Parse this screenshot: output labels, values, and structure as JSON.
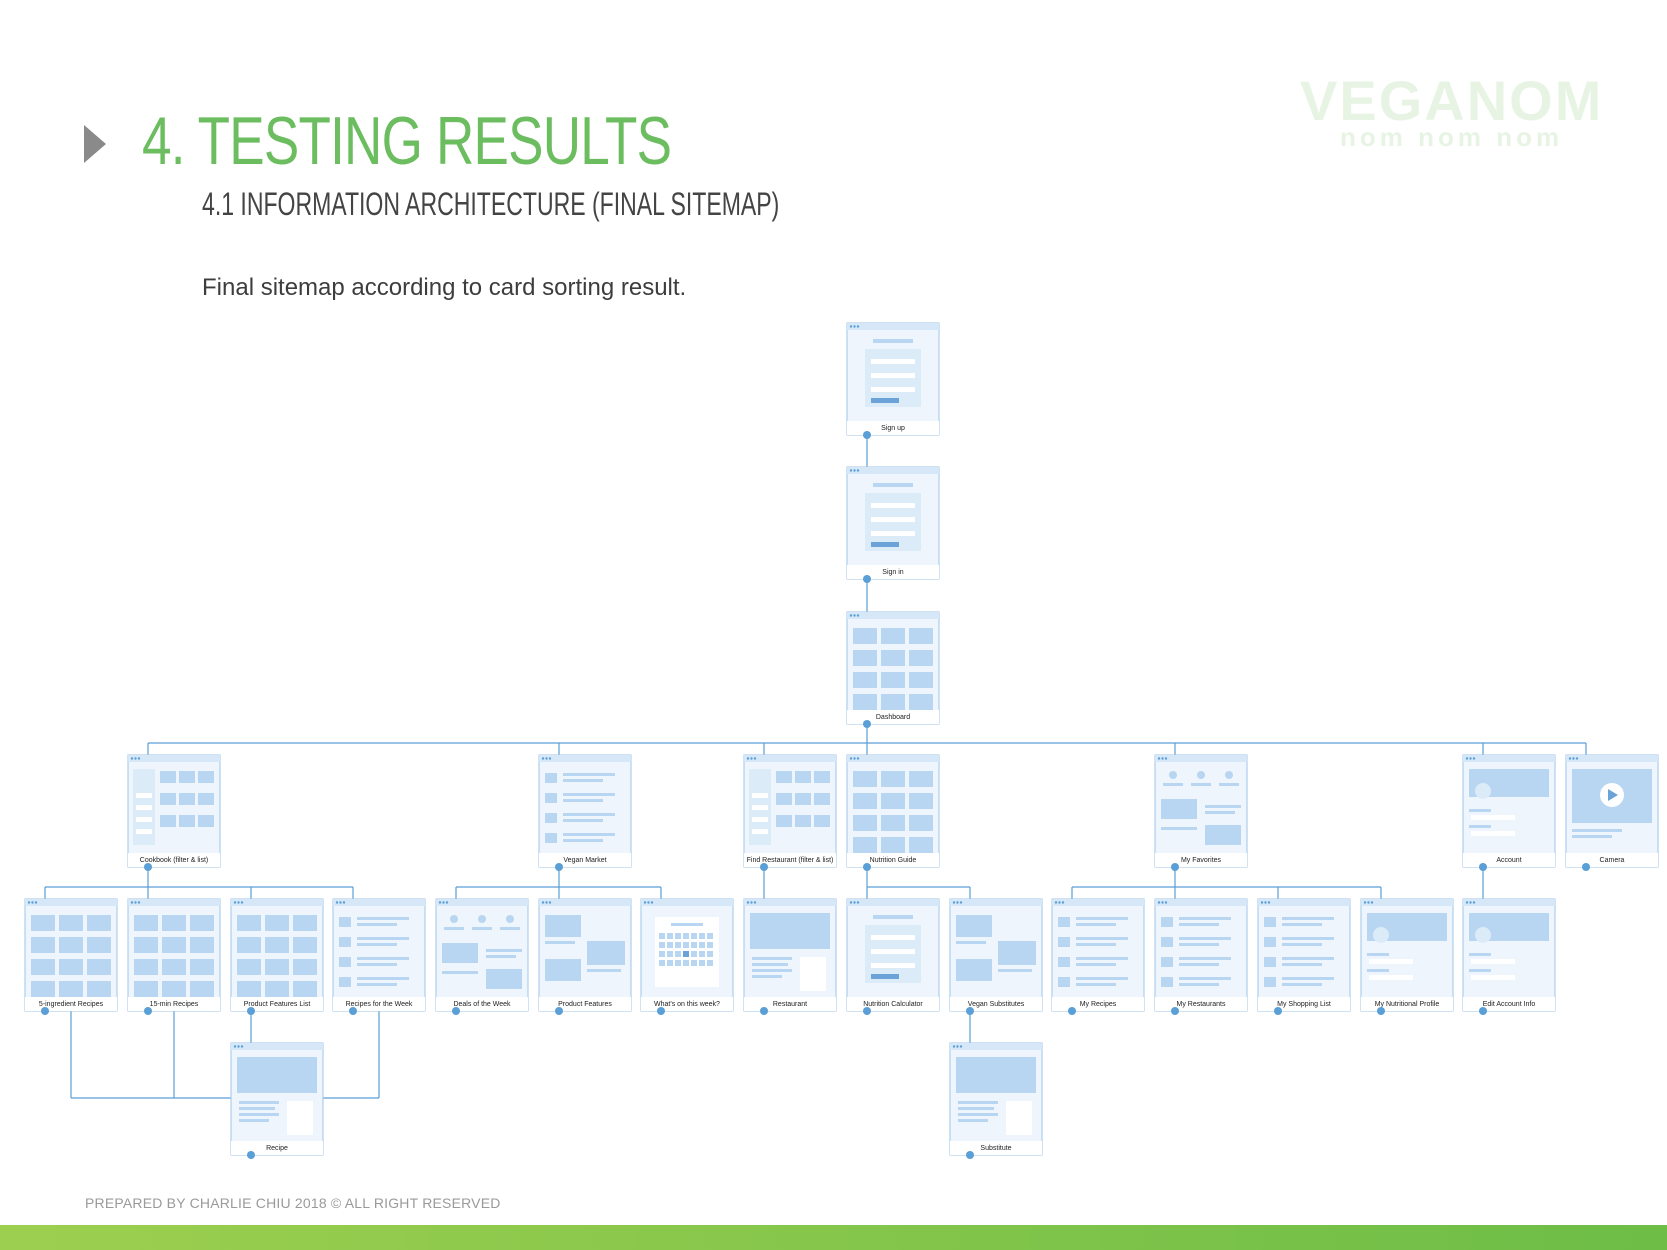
{
  "header": {
    "title": "4. TESTING RESULTS",
    "subtitle": "4.1  INFORMATION ARCHITECTURE (FINAL SITEMAP)",
    "intro": "Final sitemap according to card sorting result."
  },
  "logo": {
    "word": "VEGANOM",
    "tagline": "nom nom nom"
  },
  "footer": {
    "text": "PREPARED BY CHARLIE CHIU 2018  © ALL RIGHT RESERVED"
  },
  "colors": {
    "title": "#6cbd5f",
    "line": "#5a9fd6",
    "card_fill": "#eef5fc",
    "card_stroke": "#9fc6ea",
    "block": "#b8d6f1",
    "logo": "#e7f4e4"
  },
  "sitemap": {
    "nodes": [
      {
        "id": "signup",
        "label": "Sign up",
        "icon": "form-wireframe"
      },
      {
        "id": "signin",
        "label": "Sign in",
        "icon": "form-wireframe"
      },
      {
        "id": "dashboard",
        "label": "Dashboard",
        "icon": "grid-wireframe"
      },
      {
        "id": "cookbook",
        "label": "Cookbook (filter & list)",
        "icon": "filter-grid-wireframe"
      },
      {
        "id": "veganmarket",
        "label": "Vegan Market",
        "icon": "list-wireframe"
      },
      {
        "id": "findrestaurant",
        "label": "Find Restaurant (filter & list)",
        "icon": "filter-grid-wireframe"
      },
      {
        "id": "nutritionguide",
        "label": "Nutrition Guide",
        "icon": "grid-wireframe"
      },
      {
        "id": "myfavorites",
        "label": "My Favorites",
        "icon": "tabs-wireframe"
      },
      {
        "id": "account",
        "label": "Account",
        "icon": "profile-wireframe"
      },
      {
        "id": "camera",
        "label": "Camera",
        "icon": "video-wireframe"
      },
      {
        "id": "fiveingredient",
        "label": "5-ingredient Recipes",
        "icon": "grid-wireframe"
      },
      {
        "id": "fifteenmin",
        "label": "15-min Recipes",
        "icon": "grid-wireframe"
      },
      {
        "id": "productfeatureslist",
        "label": "Product Features List",
        "icon": "grid-wireframe"
      },
      {
        "id": "recipesweek",
        "label": "Recipes for the Week",
        "icon": "list-wireframe"
      },
      {
        "id": "deals",
        "label": "Deals of the Week",
        "icon": "tabs-wireframe"
      },
      {
        "id": "productfeatures",
        "label": "Product Features",
        "icon": "media-wireframe"
      },
      {
        "id": "whatson",
        "label": "What's on this week?",
        "icon": "calendar-wireframe"
      },
      {
        "id": "restaurant",
        "label": "Restaurant",
        "icon": "detail-wireframe"
      },
      {
        "id": "nutritioncalc",
        "label": "Nutrition Calculator",
        "icon": "form-wireframe"
      },
      {
        "id": "vegansubs",
        "label": "Vegan Substitutes",
        "icon": "media-wireframe"
      },
      {
        "id": "myrecipes",
        "label": "My Recipes",
        "icon": "list-wireframe"
      },
      {
        "id": "myrestaurants",
        "label": "My Restaurants",
        "icon": "list-wireframe"
      },
      {
        "id": "myshopping",
        "label": "My Shopping List",
        "icon": "list-wireframe"
      },
      {
        "id": "mynutrition",
        "label": "My Nutritional Profile",
        "icon": "profile-wireframe"
      },
      {
        "id": "editaccount",
        "label": "Edit Account Info",
        "icon": "profile-wireframe"
      },
      {
        "id": "recipe",
        "label": "Recipe",
        "icon": "detail-wireframe"
      },
      {
        "id": "substitute",
        "label": "Substitute",
        "icon": "detail-wireframe"
      }
    ],
    "edges": [
      [
        "signup",
        "signin"
      ],
      [
        "signin",
        "dashboard"
      ],
      [
        "dashboard",
        "cookbook"
      ],
      [
        "dashboard",
        "veganmarket"
      ],
      [
        "dashboard",
        "findrestaurant"
      ],
      [
        "dashboard",
        "nutritionguide"
      ],
      [
        "dashboard",
        "myfavorites"
      ],
      [
        "dashboard",
        "account"
      ],
      [
        "dashboard",
        "camera"
      ],
      [
        "cookbook",
        "fiveingredient"
      ],
      [
        "cookbook",
        "fifteenmin"
      ],
      [
        "cookbook",
        "productfeatureslist"
      ],
      [
        "cookbook",
        "recipesweek"
      ],
      [
        "veganmarket",
        "deals"
      ],
      [
        "veganmarket",
        "productfeatures"
      ],
      [
        "veganmarket",
        "whatson"
      ],
      [
        "findrestaurant",
        "restaurant"
      ],
      [
        "nutritionguide",
        "nutritioncalc"
      ],
      [
        "nutritionguide",
        "vegansubs"
      ],
      [
        "myfavorites",
        "myrecipes"
      ],
      [
        "myfavorites",
        "myrestaurants"
      ],
      [
        "myfavorites",
        "myshopping"
      ],
      [
        "myfavorites",
        "mynutrition"
      ],
      [
        "account",
        "editaccount"
      ],
      [
        "productfeatureslist",
        "recipe"
      ],
      [
        "fiveingredient",
        "recipe"
      ],
      [
        "fifteenmin",
        "recipe"
      ],
      [
        "recipesweek",
        "recipe"
      ],
      [
        "vegansubs",
        "substitute"
      ]
    ]
  }
}
